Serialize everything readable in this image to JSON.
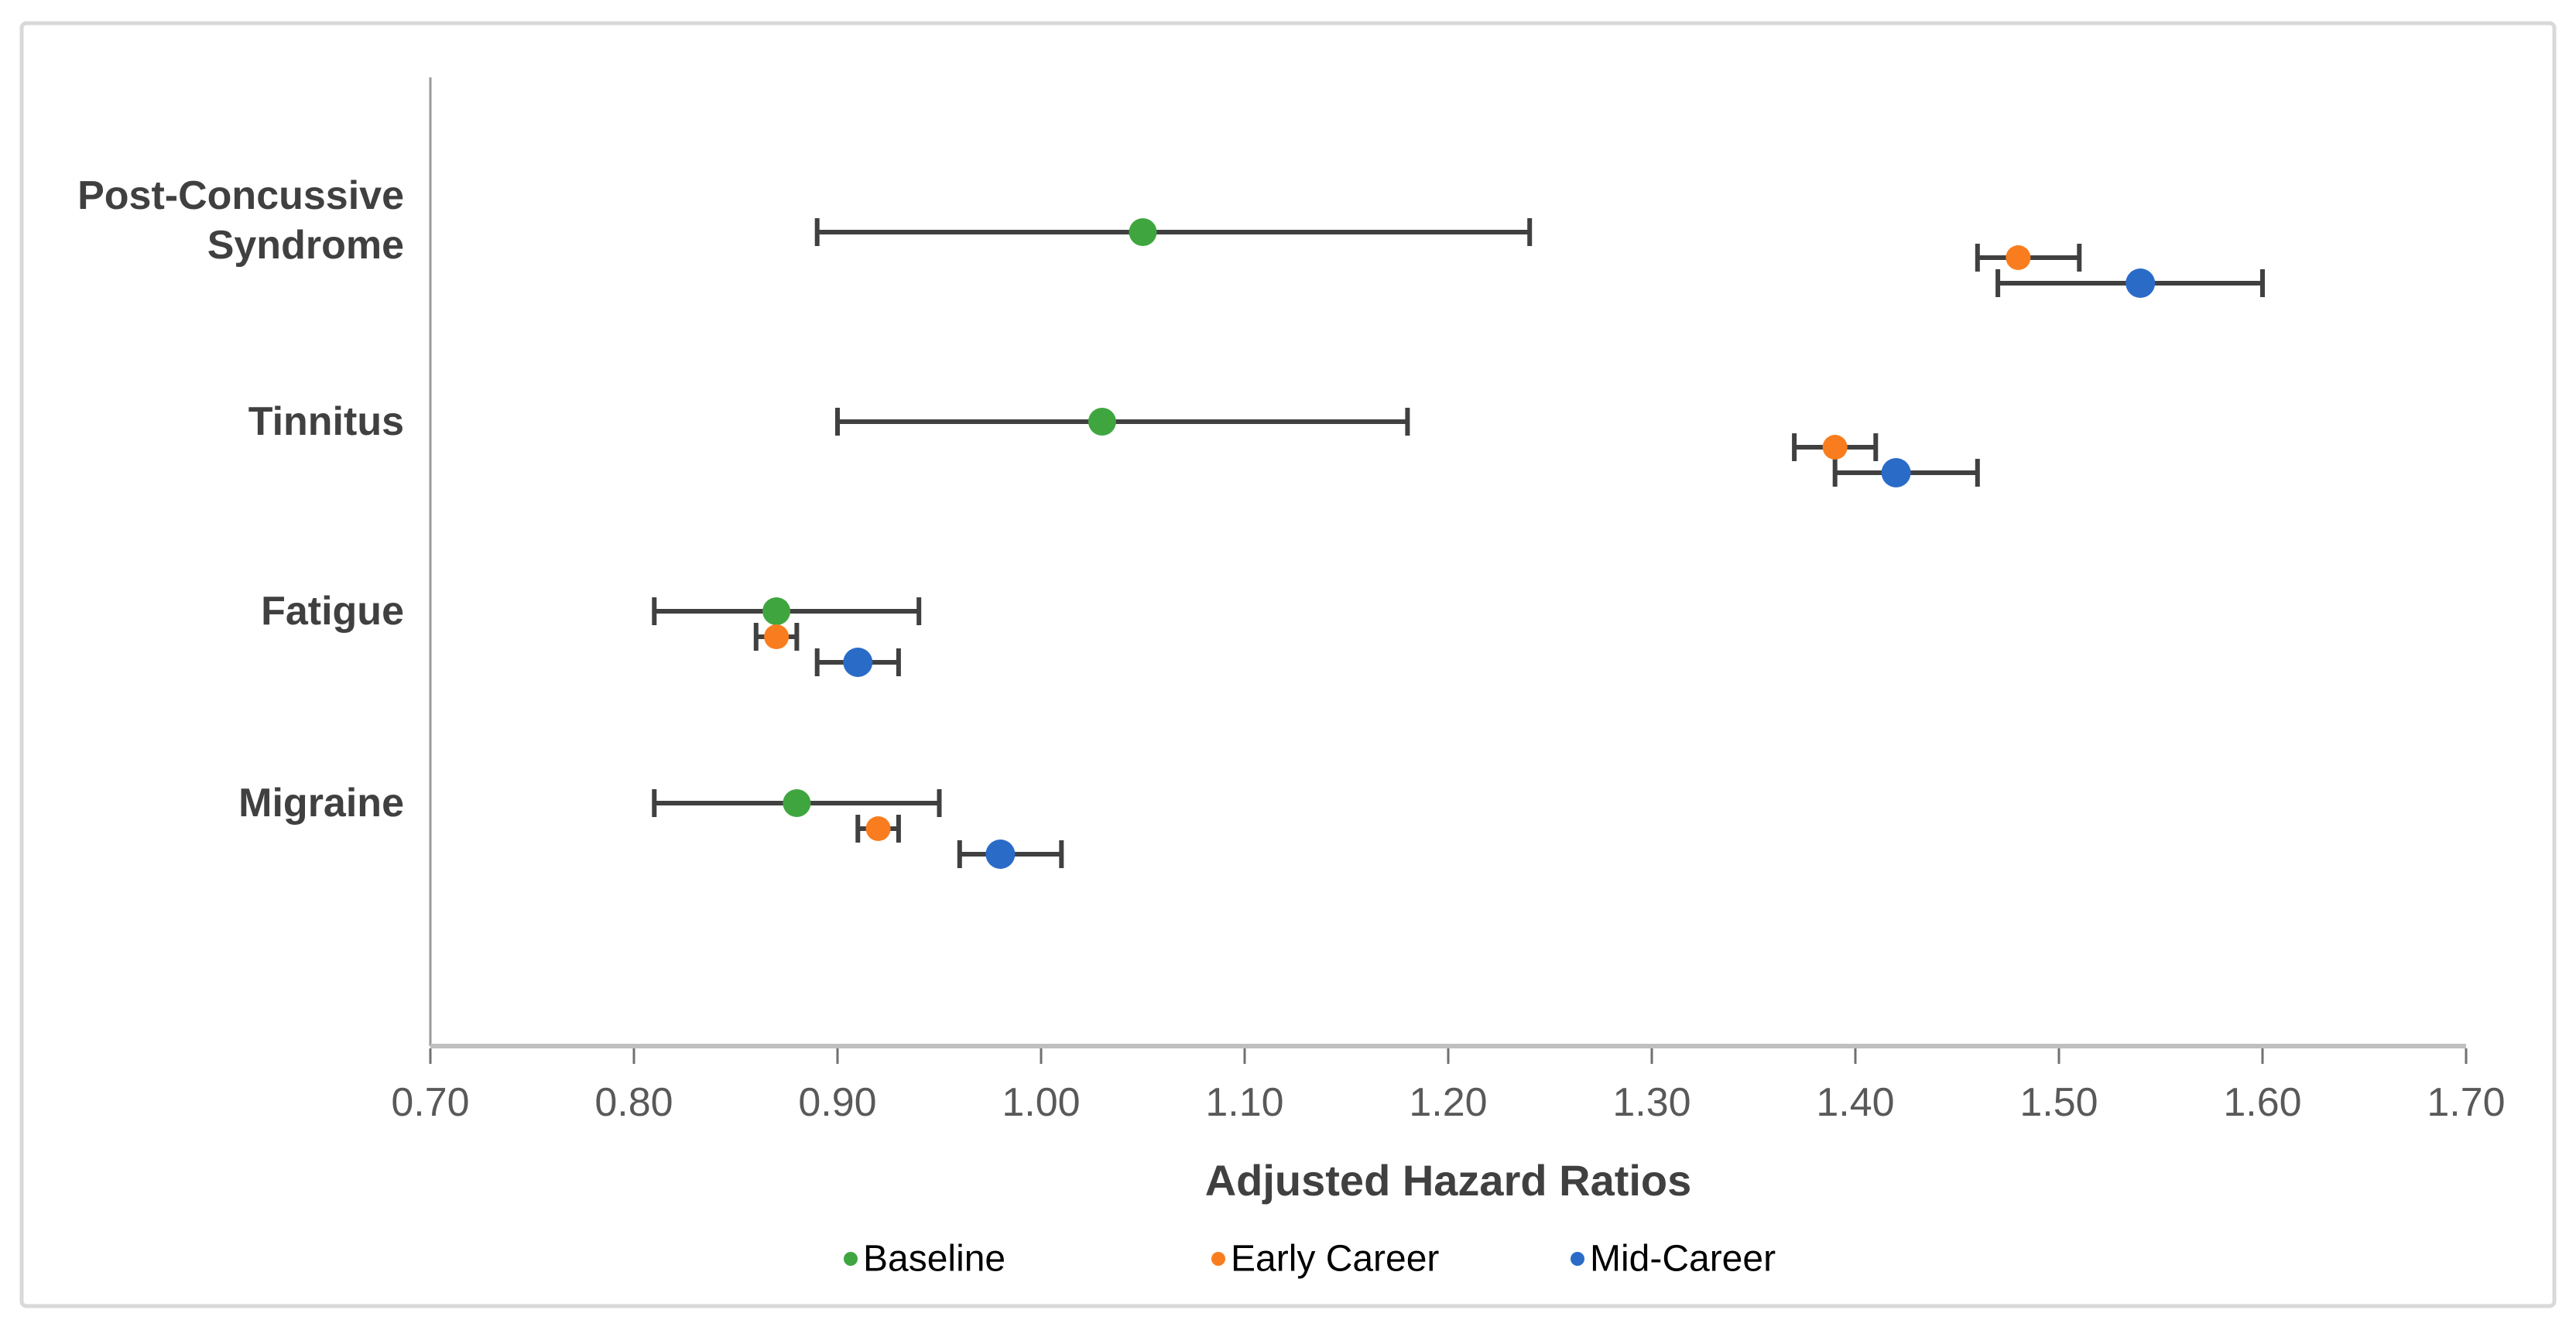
{
  "chart_data": {
    "type": "scatter",
    "subtype": "forest-plot-with-error-bars",
    "title": "",
    "xlabel": "Adjusted Hazard Ratios",
    "ylabel": "",
    "xlim": [
      0.7,
      1.7
    ],
    "xtick_labels": [
      "0.70",
      "0.80",
      "0.90",
      "1.00",
      "1.10",
      "1.20",
      "1.30",
      "1.40",
      "1.50",
      "1.60",
      "1.70"
    ],
    "grid": false,
    "legend_position": "bottom",
    "categories": [
      "Post-Concussive Syndrome",
      "Tinnitus",
      "Fatigue",
      "Migraine"
    ],
    "category_label_lines": [
      [
        "Post-Concussive",
        "Syndrome"
      ],
      [
        "Tinnitus"
      ],
      [
        "Fatigue"
      ],
      [
        "Migraine"
      ]
    ],
    "series": [
      {
        "name": "Baseline",
        "color": "#3FA63F",
        "values": [
          {
            "category": "Post-Concussive Syndrome",
            "hr": 1.05,
            "ci_low": 0.89,
            "ci_high": 1.24
          },
          {
            "category": "Tinnitus",
            "hr": 1.03,
            "ci_low": 0.9,
            "ci_high": 1.18
          },
          {
            "category": "Fatigue",
            "hr": 0.87,
            "ci_low": 0.81,
            "ci_high": 0.94
          },
          {
            "category": "Migraine",
            "hr": 0.88,
            "ci_low": 0.81,
            "ci_high": 0.95
          }
        ]
      },
      {
        "name": "Early Career",
        "color": "#F97D1E",
        "values": [
          {
            "category": "Post-Concussive Syndrome",
            "hr": 1.48,
            "ci_low": 1.46,
            "ci_high": 1.51
          },
          {
            "category": "Tinnitus",
            "hr": 1.39,
            "ci_low": 1.37,
            "ci_high": 1.41
          },
          {
            "category": "Fatigue",
            "hr": 0.87,
            "ci_low": 0.86,
            "ci_high": 0.88
          },
          {
            "category": "Migraine",
            "hr": 0.92,
            "ci_low": 0.91,
            "ci_high": 0.93
          }
        ]
      },
      {
        "name": "Mid-Career",
        "color": "#2A6BC8",
        "values": [
          {
            "category": "Post-Concussive Syndrome",
            "hr": 1.54,
            "ci_low": 1.47,
            "ci_high": 1.6
          },
          {
            "category": "Tinnitus",
            "hr": 1.42,
            "ci_low": 1.39,
            "ci_high": 1.46
          },
          {
            "category": "Fatigue",
            "hr": 0.91,
            "ci_low": 0.89,
            "ci_high": 0.93
          },
          {
            "category": "Migraine",
            "hr": 0.98,
            "ci_low": 0.96,
            "ci_high": 1.01
          }
        ]
      }
    ]
  },
  "colors": {
    "frame_border": "#D9D9D9",
    "background": "#FFFFFF",
    "x_axis_line": "#C0C0C0",
    "y_axis_line": "#9A9A9A",
    "tick_mark": "#707070",
    "tick_label_text": "#595959",
    "category_label_text": "#404040",
    "axis_title_text": "#404040",
    "legend_text": "#000000",
    "error_bar": "#404040"
  }
}
